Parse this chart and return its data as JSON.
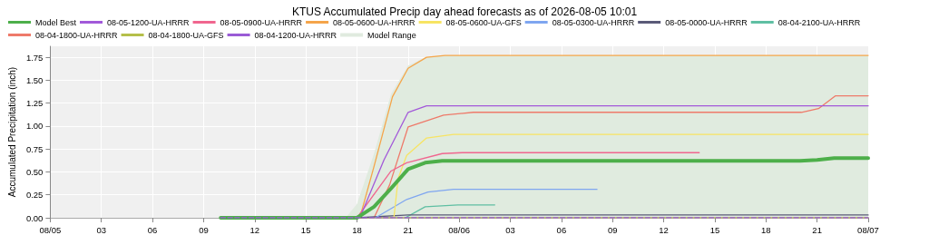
{
  "chart_data": {
    "type": "line",
    "title": "KTUS Accumulated Precip day ahead forecasts as of 2026-08-05 10:01",
    "ylabel": "Accumulated Precipitation (inch)",
    "xlim": [
      "2026-08-05T00:00",
      "2026-08-07T00:00"
    ],
    "xticks": [
      {
        "value": "2026-08-05T00:00",
        "label": "08/05"
      },
      {
        "value": "2026-08-05T03:00",
        "label": "03"
      },
      {
        "value": "2026-08-05T06:00",
        "label": "06"
      },
      {
        "value": "2026-08-05T09:00",
        "label": "09"
      },
      {
        "value": "2026-08-05T12:00",
        "label": "12"
      },
      {
        "value": "2026-08-05T15:00",
        "label": "15"
      },
      {
        "value": "2026-08-05T18:00",
        "label": "18"
      },
      {
        "value": "2026-08-05T21:00",
        "label": "21"
      },
      {
        "value": "2026-08-06T00:00",
        "label": "08/06"
      },
      {
        "value": "2026-08-06T03:00",
        "label": "03"
      },
      {
        "value": "2026-08-06T06:00",
        "label": "06"
      },
      {
        "value": "2026-08-06T09:00",
        "label": "09"
      },
      {
        "value": "2026-08-06T12:00",
        "label": "12"
      },
      {
        "value": "2026-08-06T15:00",
        "label": "15"
      },
      {
        "value": "2026-08-06T18:00",
        "label": "18"
      },
      {
        "value": "2026-08-06T21:00",
        "label": "21"
      },
      {
        "value": "2026-08-07T00:00",
        "label": "08/07"
      }
    ],
    "ylim": [
      0,
      1.87
    ],
    "yticks": [
      {
        "value": 0,
        "label": "0.00"
      },
      {
        "value": 0.25,
        "label": "0.25"
      },
      {
        "value": 0.5,
        "label": "0.50"
      },
      {
        "value": 0.75,
        "label": "0.75"
      },
      {
        "value": 1,
        "label": "1.00"
      },
      {
        "value": 1.25,
        "label": "1.25"
      },
      {
        "value": 1.5,
        "label": "1.50"
      },
      {
        "value": 1.75,
        "label": "1.75"
      }
    ],
    "grid": true,
    "legend": "top",
    "marker": "none",
    "series": [
      {
        "name": "Model Best",
        "color": "#4daf4a",
        "x": [
          "2026-08-05T10:00",
          "2026-08-05T18:00",
          "2026-08-05T19:00",
          "2026-08-05T20:00",
          "2026-08-05T21:00",
          "2026-08-05T22:00",
          "2026-08-05T23:00",
          "2026-08-06T20:00",
          "2026-08-06T21:00",
          "2026-08-06T22:00",
          "2026-08-07T00:00"
        ],
        "values": [
          0,
          0,
          0.12,
          0.32,
          0.53,
          0.6,
          0.62,
          0.62,
          0.63,
          0.65,
          0.65
        ]
      },
      {
        "name": "08-05-1200-UA-HRRR",
        "color": "#a259d9",
        "x": [
          "2026-08-05T18:10",
          "2026-08-05T19:35",
          "2026-08-05T21:00",
          "2026-08-05T22:05",
          "2026-08-07T00:00"
        ],
        "values": [
          0,
          0.63,
          1.15,
          1.22,
          1.22
        ]
      },
      {
        "name": "08-05-0900-UA-HRRR",
        "color": "#f0668f",
        "x": [
          "2026-08-05T18:00",
          "2026-08-05T20:00",
          "2026-08-05T20:55",
          "2026-08-05T23:00",
          "2026-08-06T00:10",
          "2026-08-06T14:05"
        ],
        "values": [
          0,
          0.51,
          0.6,
          0.7,
          0.71,
          0.71
        ]
      },
      {
        "name": "08-05-0600-UA-HRRR",
        "color": "#f5a54a",
        "x": [
          "2026-08-05T18:10",
          "2026-08-05T19:00",
          "2026-08-05T20:05",
          "2026-08-05T21:00",
          "2026-08-05T22:05",
          "2026-08-05T23:10",
          "2026-08-07T00:00"
        ],
        "values": [
          0,
          0.56,
          1.32,
          1.63,
          1.75,
          1.77,
          1.77
        ]
      },
      {
        "name": "08-05-0600-UA-GFS",
        "color": "#f7e463",
        "x": [
          "2026-08-05T20:10",
          "2026-08-05T20:25",
          "2026-08-05T20:55",
          "2026-08-05T22:05",
          "2026-08-05T23:40",
          "2026-08-07T00:00"
        ],
        "values": [
          0,
          0.43,
          0.68,
          0.87,
          0.91,
          0.91
        ]
      },
      {
        "name": "08-05-0300-UA-HRRR",
        "color": "#7fa6f0",
        "x": [
          "2026-08-05T19:05",
          "2026-08-05T20:55",
          "2026-08-05T22:10",
          "2026-08-05T23:40",
          "2026-08-06T08:05"
        ],
        "values": [
          0,
          0.2,
          0.28,
          0.31,
          0.31
        ]
      },
      {
        "name": "08-05-0000-UA-HRRR",
        "color": "#5a5a78",
        "x": [
          "2026-08-05T18:00",
          "2026-08-05T21:00",
          "2026-08-07T00:00"
        ],
        "values": [
          0,
          0.03,
          0.03
        ]
      },
      {
        "name": "08-04-2100-UA-HRRR",
        "color": "#5fbfa3",
        "x": [
          "2026-08-05T20:50",
          "2026-08-05T22:00",
          "2026-08-05T23:55",
          "2026-08-06T02:05"
        ],
        "values": [
          0,
          0.12,
          0.14,
          0.14
        ]
      },
      {
        "name": "08-04-1800-UA-HRRR",
        "color": "#ee7a6a",
        "x": [
          "2026-08-05T19:00",
          "2026-08-05T19:55",
          "2026-08-05T21:00",
          "2026-08-05T23:05",
          "2026-08-06T00:50",
          "2026-08-06T20:05",
          "2026-08-06T21:05",
          "2026-08-06T22:05",
          "2026-08-07T00:00"
        ],
        "values": [
          0,
          0.36,
          0.99,
          1.12,
          1.15,
          1.15,
          1.19,
          1.33,
          1.33
        ]
      },
      {
        "name": "08-04-1800-UA-GFS",
        "color": "#b5bf4a",
        "x": [
          "2026-08-05T10:00",
          "2026-08-07T00:00"
        ],
        "values": [
          0,
          0
        ]
      },
      {
        "name": "08-04-1200-UA-HRRR",
        "color": "#9a5bd6",
        "line_style": "dashed",
        "x": [
          "2026-08-05T10:00",
          "2026-08-07T00:00"
        ],
        "values": [
          0,
          0
        ]
      },
      {
        "name": "Model Range",
        "type": "area",
        "color": "#e0ebdf",
        "x": [
          "2026-08-05T10:00",
          "2026-08-05T17:20",
          "2026-08-05T18:00",
          "2026-08-05T19:00",
          "2026-08-05T20:00",
          "2026-08-05T21:00",
          "2026-08-05T22:00",
          "2026-08-05T23:00",
          "2026-08-07T00:00"
        ],
        "values": [
          0,
          0,
          0.15,
          0.7,
          1.35,
          1.66,
          1.75,
          1.77,
          1.77
        ]
      }
    ]
  }
}
